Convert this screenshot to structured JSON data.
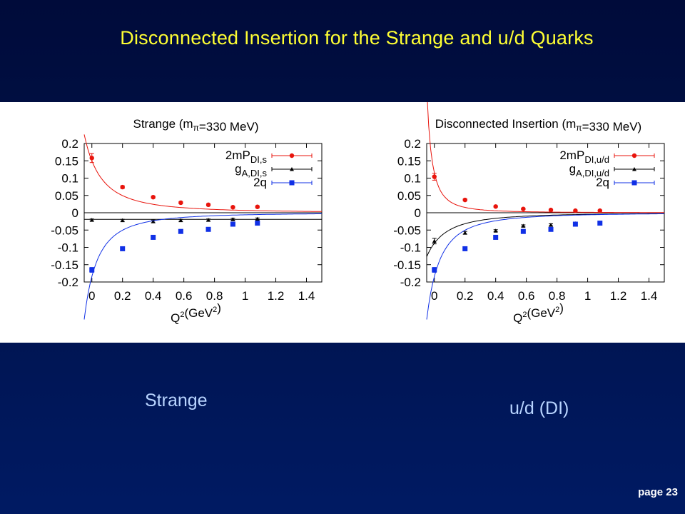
{
  "slide": {
    "title": "Disconnected Insertion for the Strange and u/d Quarks",
    "captions": [
      "Strange",
      "u/d (DI)"
    ],
    "page_label": "page 23"
  },
  "colors": {
    "red": "#e8140c",
    "black": "#000000",
    "blue": "#1030e6"
  },
  "chart_data": [
    {
      "type": "scatter",
      "title": "Strange (mπ=330 MeV)",
      "xlabel": "Q²(GeV²)",
      "ylabel": "",
      "xlim": [
        -0.05,
        1.5
      ],
      "ylim": [
        -0.2,
        0.2
      ],
      "xticks": [
        0,
        0.2,
        0.4,
        0.6,
        0.8,
        1,
        1.2,
        1.4
      ],
      "xtick_labels": [
        "0",
        "0.2",
        "0.4",
        "0.6",
        "0.8",
        "1",
        "1.2",
        "1.4"
      ],
      "yticks": [
        0.2,
        0.15,
        0.1,
        0.05,
        0,
        -0.05,
        -0.1,
        -0.15,
        -0.2
      ],
      "ytick_labels": [
        "0.2",
        "0.15",
        "0.1",
        "0.05",
        "0",
        "-0.05",
        "-0.1",
        "-0.15",
        "-0.2"
      ],
      "legend_position": "top-right",
      "series": [
        {
          "name": "2mP_{DI,s}",
          "color": "red",
          "marker": "circle",
          "x": [
            0,
            0.2,
            0.4,
            0.58,
            0.76,
            0.92,
            1.08
          ],
          "y": [
            0.158,
            0.074,
            0.045,
            0.029,
            0.023,
            0.016,
            0.017
          ],
          "err": [
            0.013,
            0.004,
            0.003,
            0.003,
            0.003,
            0.003,
            0.003
          ],
          "fit": {
            "a": 0.15,
            "m2": 0.27,
            "c": 0
          }
        },
        {
          "name": "g_{A,DI,s}",
          "color": "black",
          "marker": "triangle",
          "x": [
            0,
            0.2,
            0.4,
            0.58,
            0.76,
            0.92,
            1.08
          ],
          "y": [
            -0.021,
            -0.022,
            -0.025,
            -0.022,
            -0.021,
            -0.019,
            -0.018
          ],
          "err": [
            0.003,
            0.003,
            0.004,
            0.003,
            0.003,
            0.003,
            0.003
          ],
          "fit": {
            "a": 0,
            "m2": 1,
            "c": -0.019
          }
        },
        {
          "name": "2q",
          "color": "blue",
          "marker": "square",
          "x": [
            0,
            0.2,
            0.4,
            0.58,
            0.76,
            0.92,
            1.08
          ],
          "y": [
            -0.165,
            -0.104,
            -0.071,
            -0.054,
            -0.048,
            -0.033,
            -0.03
          ],
          "err": [
            0.007,
            0.004,
            0.003,
            0.003,
            0.003,
            0.003,
            0.003
          ],
          "fit": {
            "a": -0.184,
            "m2": 0.22,
            "c": 0
          }
        }
      ]
    },
    {
      "type": "scatter",
      "title": "Disconnected Insertion (mπ=330 MeV)",
      "xlabel": "Q²(GeV²)",
      "ylabel": "",
      "xlim": [
        -0.05,
        1.5
      ],
      "ylim": [
        -0.2,
        0.2
      ],
      "xticks": [
        0,
        0.2,
        0.4,
        0.6,
        0.8,
        1,
        1.2,
        1.4
      ],
      "xtick_labels": [
        "0",
        "0.2",
        "0.4",
        "0.6",
        "0.8",
        "1",
        "1.2",
        "1.4"
      ],
      "yticks": [
        0.2,
        0.15,
        0.1,
        0.05,
        0,
        -0.05,
        -0.1,
        -0.15,
        -0.2
      ],
      "ytick_labels": [
        "0.2",
        "0.15",
        "0.1",
        "0.05",
        "0",
        "-0.05",
        "-0.1",
        "-0.15",
        "-0.2"
      ],
      "legend_position": "top-right",
      "series": [
        {
          "name": "2mP_{DI,u/d}",
          "color": "red",
          "marker": "circle",
          "x": [
            0,
            0.2,
            0.4,
            0.58,
            0.76,
            0.92,
            1.08
          ],
          "y": [
            0.104,
            0.037,
            0.018,
            0.011,
            0.008,
            0.006,
            0.006
          ],
          "err": [
            0.01,
            0.003,
            0.002,
            0.002,
            0.002,
            0.002,
            0.002
          ],
          "fit": {
            "a": 0.115,
            "m2": 0.115,
            "c": 0
          }
        },
        {
          "name": "g_{A,DI,u/d}",
          "color": "black",
          "marker": "triangle",
          "x": [
            0,
            0.2,
            0.4,
            0.58,
            0.76,
            0.92,
            1.08
          ],
          "y": [
            -0.082,
            -0.058,
            -0.052,
            -0.038,
            -0.035,
            -0.031,
            -0.03
          ],
          "err": [
            0.008,
            0.004,
            0.003,
            0.003,
            0.003,
            0.003,
            0.003
          ],
          "fit": {
            "a": -0.088,
            "m2": 0.3,
            "c": 0
          }
        },
        {
          "name": "2q",
          "color": "blue",
          "marker": "square",
          "x": [
            0,
            0.2,
            0.4,
            0.58,
            0.76,
            0.92,
            1.08
          ],
          "y": [
            -0.165,
            -0.104,
            -0.071,
            -0.054,
            -0.048,
            -0.033,
            -0.03
          ],
          "err": [
            0.007,
            0.004,
            0.003,
            0.003,
            0.003,
            0.003,
            0.003
          ],
          "fit": {
            "a": -0.184,
            "m2": 0.22,
            "c": 0
          }
        }
      ]
    }
  ]
}
